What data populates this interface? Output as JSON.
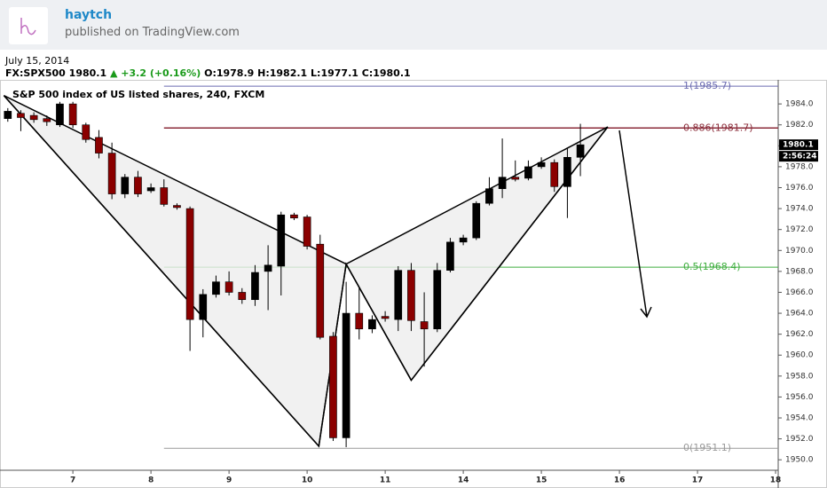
{
  "header": {
    "author": "haytch",
    "published": "published on TradingView.com"
  },
  "date": "July 15, 2014",
  "info": {
    "symbol": "FX:SPX500",
    "last": "1980.1",
    "change": "+3.2 (+0.16%)",
    "open": "O:1978.9",
    "high": "H:1982.1",
    "low": "L:1977.1",
    "close": "C:1980.1"
  },
  "chart_data": {
    "type": "candlestick",
    "title": "S&P 500 index of US listed shares, 240, FXCM",
    "x": [
      0,
      1,
      2,
      3,
      4,
      5,
      6,
      7,
      8,
      9,
      10,
      11,
      12,
      13,
      14,
      15,
      16,
      17,
      18,
      19,
      20,
      21,
      22,
      23,
      24,
      25,
      26,
      27,
      28,
      29,
      30,
      31,
      32,
      33,
      34,
      35,
      36,
      37,
      38,
      39,
      40,
      41,
      42,
      43,
      44
    ],
    "open": [
      1982.6,
      1983.1,
      1982.9,
      1982.6,
      1982.0,
      1984.0,
      1982.0,
      1980.8,
      1979.3,
      1975.4,
      1977.0,
      1975.7,
      1976.0,
      1974.3,
      1974.0,
      1963.4,
      1965.8,
      1967.0,
      1966.0,
      1965.3,
      1968.0,
      1968.5,
      1973.4,
      1973.2,
      1970.6,
      1961.8,
      1952.1,
      1964.0,
      1962.5,
      1963.7,
      1963.4,
      1968.1,
      1963.2,
      1962.5,
      1968.1,
      1970.8,
      1971.2,
      1974.5,
      1975.9,
      1977.0,
      1976.9,
      1978.0,
      1978.4,
      1976.1,
      1978.9
    ],
    "high": [
      1983.6,
      1983.4,
      1983.2,
      1982.9,
      1984.2,
      1984.2,
      1982.2,
      1981.5,
      1980.3,
      1977.3,
      1977.6,
      1976.4,
      1976.8,
      1974.5,
      1974.2,
      1966.3,
      1967.6,
      1968.0,
      1966.4,
      1968.6,
      1970.5,
      1973.7,
      1973.6,
      1973.4,
      1971.5,
      1962.2,
      1967.0,
      1966.5,
      1963.8,
      1964.2,
      1968.5,
      1968.8,
      1966.0,
      1968.8,
      1971.2,
      1971.5,
      1974.7,
      1977.0,
      1980.7,
      1978.6,
      1978.6,
      1978.9,
      1978.7,
      1979.8,
      1982.1
    ],
    "low": [
      1982.3,
      1981.4,
      1982.2,
      1981.9,
      1981.8,
      1981.7,
      1980.3,
      1978.8,
      1974.9,
      1975.0,
      1975.1,
      1975.5,
      1974.2,
      1973.9,
      1960.4,
      1961.7,
      1965.5,
      1965.7,
      1964.9,
      1964.7,
      1964.3,
      1965.7,
      1972.9,
      1970.1,
      1961.5,
      1951.8,
      1951.2,
      1961.5,
      1962.1,
      1963.2,
      1962.3,
      1962.3,
      1958.9,
      1962.2,
      1967.9,
      1970.5,
      1971.0,
      1974.3,
      1975.0,
      1976.6,
      1976.7,
      1977.8,
      1975.6,
      1973.1,
      1977.1
    ],
    "close": [
      1983.3,
      1982.7,
      1982.5,
      1982.3,
      1984.0,
      1982.0,
      1980.6,
      1979.3,
      1975.4,
      1977.0,
      1975.4,
      1976.0,
      1974.4,
      1974.1,
      1963.4,
      1965.8,
      1967.0,
      1966.0,
      1965.3,
      1967.9,
      1968.6,
      1973.4,
      1973.1,
      1970.4,
      1961.7,
      1952.1,
      1964.0,
      1962.5,
      1963.4,
      1963.5,
      1968.1,
      1963.3,
      1962.5,
      1968.1,
      1970.8,
      1971.2,
      1974.5,
      1975.9,
      1977.0,
      1976.8,
      1978.0,
      1978.4,
      1976.1,
      1978.9,
      1980.1
    ],
    "up_color": "#000000",
    "down_color": "#8b0000",
    "xlim": [
      -0.6,
      59.2
    ],
    "ylim": [
      1949.0,
      1986.3
    ],
    "xticks": [
      {
        "value": 5,
        "label": "7"
      },
      {
        "value": 11,
        "label": "8"
      },
      {
        "value": 17,
        "label": "9"
      },
      {
        "value": 23,
        "label": "10"
      },
      {
        "value": 29,
        "label": "11"
      },
      {
        "value": 35,
        "label": "14"
      },
      {
        "value": 41,
        "label": "15"
      },
      {
        "value": 47,
        "label": "16"
      },
      {
        "value": 53,
        "label": "17"
      },
      {
        "value": 59,
        "label": "18"
      }
    ],
    "yticks": [
      {
        "value": 1950,
        "label": "1950.0"
      },
      {
        "value": 1952,
        "label": "1952.0"
      },
      {
        "value": 1954,
        "label": "1954.0"
      },
      {
        "value": 1956,
        "label": "1956.0"
      },
      {
        "value": 1958,
        "label": "1958.0"
      },
      {
        "value": 1960,
        "label": "1960.0"
      },
      {
        "value": 1962,
        "label": "1962.0"
      },
      {
        "value": 1964,
        "label": "1964.0"
      },
      {
        "value": 1966,
        "label": "1966.0"
      },
      {
        "value": 1968,
        "label": "1968.0"
      },
      {
        "value": 1970,
        "label": "1970.0"
      },
      {
        "value": 1972,
        "label": "1972.0"
      },
      {
        "value": 1974,
        "label": "1974.0"
      },
      {
        "value": 1976,
        "label": "1976.0"
      },
      {
        "value": 1978,
        "label": "1978.0"
      },
      {
        "value": 1980,
        "label": "1980.0"
      },
      {
        "value": 1982,
        "label": "1982.0"
      },
      {
        "value": 1984,
        "label": "1984.0"
      }
    ],
    "grid": false,
    "last_price": 1980.1,
    "countdown": "2:56:24",
    "levels": [
      {
        "label": "1(1985.7)",
        "value": 1985.7,
        "color": "#6a6ab0"
      },
      {
        "label": "0.886(1981.7)",
        "value": 1981.7,
        "color": "#8b2c3a"
      },
      {
        "label": "0.5(1968.4)",
        "value": 1968.4,
        "color": "#3fae3f"
      },
      {
        "label": "0(1951.1)",
        "value": 1951.1,
        "color": "#999999"
      }
    ],
    "pattern": {
      "x": [
        -0.3,
        23.9,
        26,
        31,
        46.1
      ],
      "y": [
        1984.8,
        1951.3,
        1968.7,
        1957.6,
        1981.8
      ]
    }
  }
}
